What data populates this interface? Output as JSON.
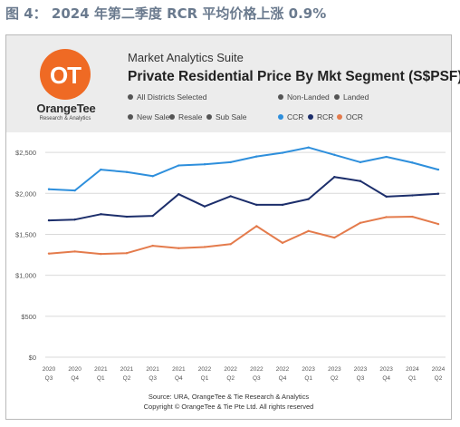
{
  "figure_caption": "图 4： 2024 年第二季度 RCR 平均价格上涨 0.9%",
  "logo": {
    "mark": "OT",
    "name": "OrangeTee",
    "subtitle": "Research & Analytics",
    "color": "#EF6A24"
  },
  "header": {
    "suite": "Market Analytics Suite",
    "title": "Private Residential Price By Mkt Segment (S$PSF)"
  },
  "filters": {
    "districts": "All Districts Selected",
    "property_types": [
      "Non-Landed",
      "Landed"
    ],
    "sale_types": [
      "New Sale",
      "Resale",
      "Sub Sale"
    ]
  },
  "colors": {
    "CCR": "#2E8FDC",
    "RCR": "#1C2E6B",
    "OCR": "#E47B4C",
    "grid": "#d9d9d9"
  },
  "chart_data": {
    "type": "line",
    "categories": [
      [
        "2020",
        "Q3"
      ],
      [
        "2020",
        "Q4"
      ],
      [
        "2021",
        "Q1"
      ],
      [
        "2021",
        "Q2"
      ],
      [
        "2021",
        "Q3"
      ],
      [
        "2021",
        "Q4"
      ],
      [
        "2022",
        "Q1"
      ],
      [
        "2022",
        "Q2"
      ],
      [
        "2022",
        "Q3"
      ],
      [
        "2022",
        "Q4"
      ],
      [
        "2023",
        "Q1"
      ],
      [
        "2023",
        "Q2"
      ],
      [
        "2023",
        "Q3"
      ],
      [
        "2023",
        "Q4"
      ],
      [
        "2024",
        "Q1"
      ],
      [
        "2024",
        "Q2"
      ]
    ],
    "series": [
      {
        "name": "CCR",
        "values": [
          2050,
          2035,
          2290,
          2260,
          2210,
          2340,
          2355,
          2380,
          2450,
          2495,
          2560,
          2470,
          2380,
          2445,
          2375,
          2290
        ]
      },
      {
        "name": "RCR",
        "values": [
          1670,
          1680,
          1745,
          1715,
          1725,
          1990,
          1840,
          1965,
          1860,
          1860,
          1930,
          2200,
          2150,
          1960,
          1975,
          1995
        ]
      },
      {
        "name": "OCR",
        "values": [
          1265,
          1290,
          1260,
          1270,
          1360,
          1330,
          1345,
          1380,
          1600,
          1395,
          1540,
          1460,
          1640,
          1710,
          1715,
          1625
        ]
      }
    ],
    "y_ticks": [
      "$0",
      "$500",
      "$1,000",
      "$1,500",
      "$2,000",
      "$2,500"
    ],
    "ylim": [
      0,
      2700
    ],
    "grid": true,
    "legend_position": "top-right"
  },
  "footer": {
    "source": "Source: URA, OrangeTee & Tie Research & Analytics",
    "copyright": "Copyright © OrangeTee & Tie Pte Ltd. All rights reserved"
  }
}
